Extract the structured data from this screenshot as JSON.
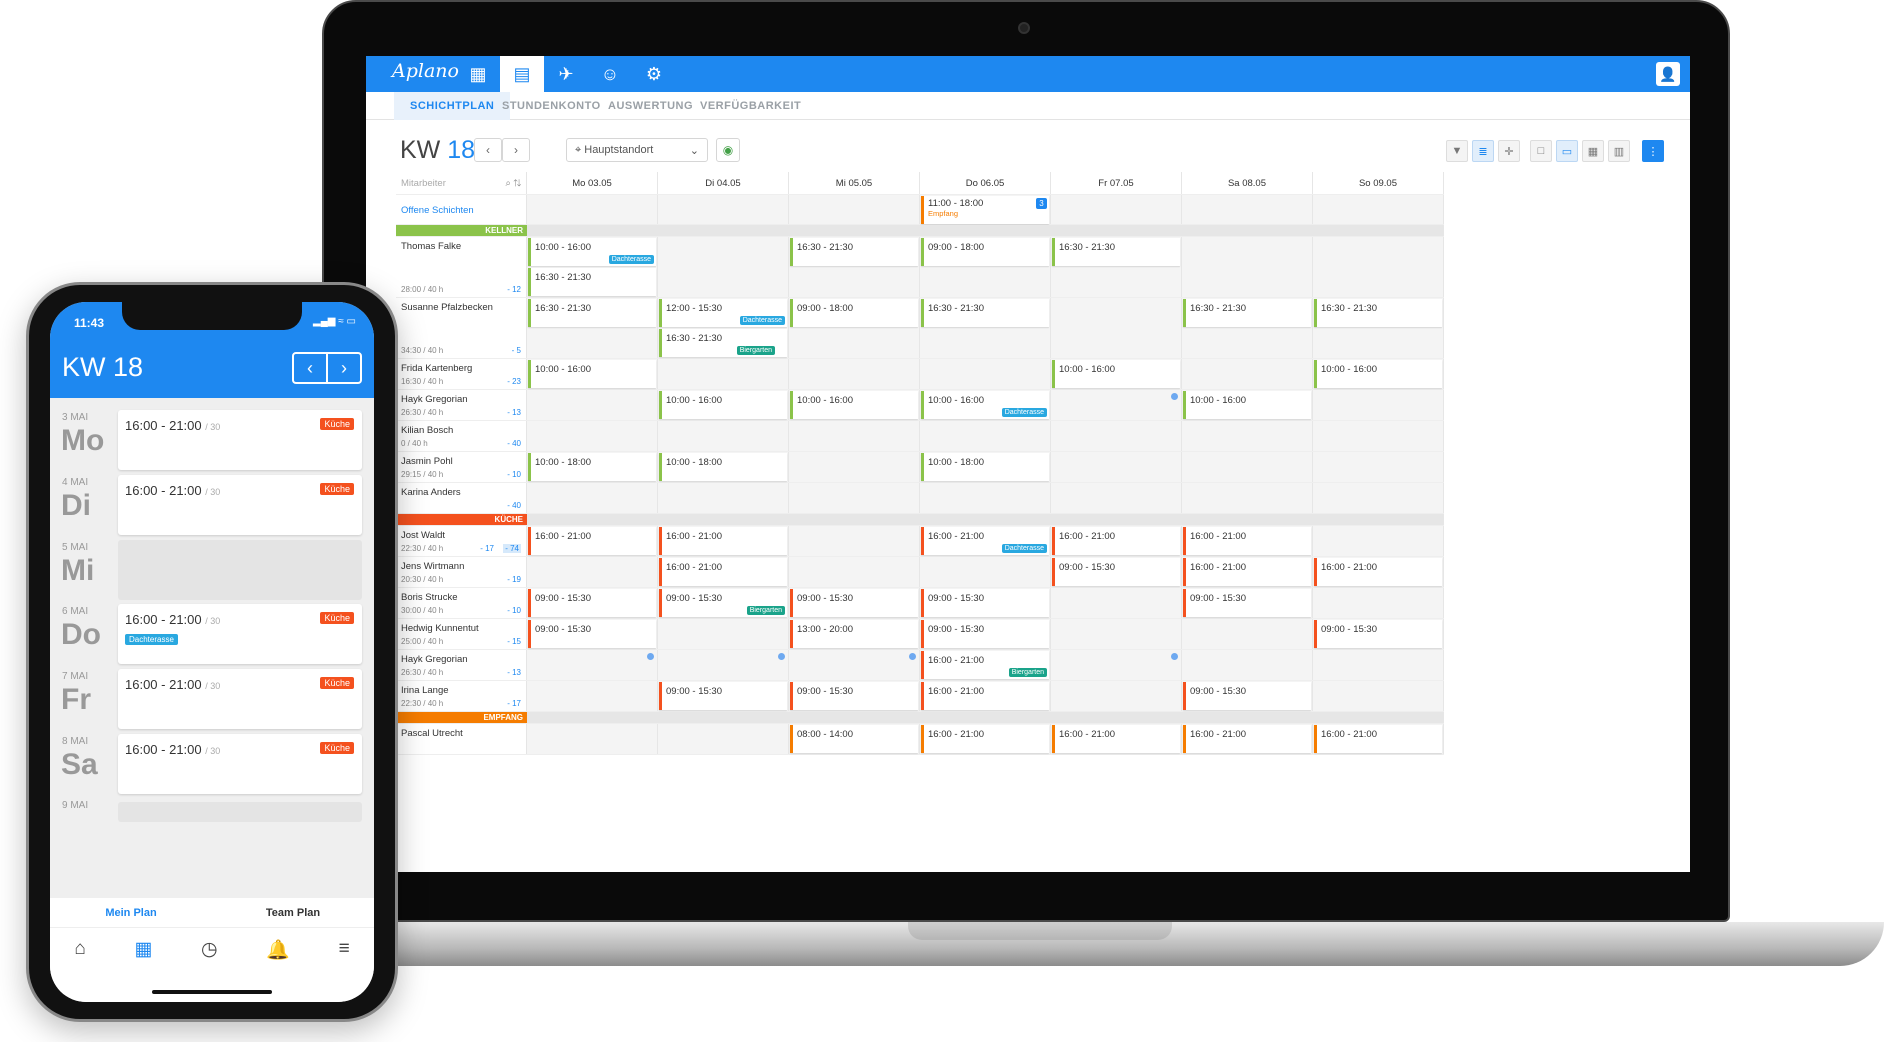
{
  "app": {
    "logo": "Aplano"
  },
  "subnav": [
    "SCHICHTPLAN",
    "STUNDENKONTO",
    "AUSWERTUNG",
    "VERFÜGBARKEIT"
  ],
  "week": {
    "prefix": "KW",
    "number": "18"
  },
  "location": "Hauptstandort",
  "search_placeholder": "Mitarbeiter",
  "days": [
    "Mo 03.05",
    "Di 04.05",
    "Mi 05.05",
    "Do 06.05",
    "Fr 07.05",
    "Sa 08.05",
    "So 09.05"
  ],
  "open_shifts": {
    "label": "Offene Schichten",
    "time": "11:00 - 18:00",
    "sub": "Empfang",
    "count": "3"
  },
  "groups": {
    "kellner": "KELLNER",
    "kueche": "KÜCHE",
    "empfang": "EMPFANG"
  },
  "employees": [
    {
      "name": "Thomas Falke",
      "hours": "28:00 / 40 h",
      "balance": "- 12"
    },
    {
      "name": "Susanne Pfalzbecken",
      "hours": "34:30 / 40 h",
      "balance": "- 5"
    },
    {
      "name": "Frida Kartenberg",
      "hours": "16:30 / 40 h",
      "balance": "- 23"
    },
    {
      "name": "Hayk Gregorian",
      "hours": "26:30 / 40 h",
      "balance": "- 13"
    },
    {
      "name": "Kilian Bosch",
      "hours": "0 / 40 h",
      "balance": "- 40"
    },
    {
      "name": "Jasmin Pohl",
      "hours": "29:15 / 40 h",
      "balance": "- 10"
    },
    {
      "name": "Karina Anders",
      "hours": "",
      "balance": "- 40"
    },
    {
      "name": "Jost Waldt",
      "hours": "22:30 / 40 h",
      "balance": "- 17",
      "balance2": "- 74"
    },
    {
      "name": "Jens Wirtmann",
      "hours": "20:30 / 40 h",
      "balance": "- 19"
    },
    {
      "name": "Boris Strucke",
      "hours": "30:00 / 40 h",
      "balance": "- 10"
    },
    {
      "name": "Hedwig Kunnentut",
      "hours": "25:00 / 40 h",
      "balance": "- 15"
    },
    {
      "name": "Hayk Gregorian",
      "hours": "26:30 / 40 h",
      "balance": "- 13"
    },
    {
      "name": "Irina Lange",
      "hours": "22:30 / 40 h",
      "balance": "- 17"
    },
    {
      "name": "Pascal Utrecht",
      "hours": "",
      "balance": ""
    }
  ],
  "shifts": {
    "t1000_1600": "10:00 - 16:00",
    "t1630_2130": "16:30 - 21:30",
    "t0900_1800": "09:00 - 18:00",
    "t1200_1530": "12:00 - 15:30",
    "t1000_1800": "10:00 - 18:00",
    "t1600_2100": "16:00 - 21:00",
    "t0900_1530": "09:00 - 15:30",
    "t1300_2000": "13:00 - 20:00",
    "t0800_1400": "08:00 - 14:00"
  },
  "tags": {
    "dachterasse": "Dachterasse",
    "biergarten": "Biergarten"
  },
  "phone": {
    "time": "11:43",
    "status": "▂▄▆ ≈ ▭",
    "kw": "KW 18",
    "days": [
      {
        "date": "3 MAI",
        "name": "Mo",
        "time": "16:00 - 21:00",
        "of": "/ 30",
        "label": "Küche"
      },
      {
        "date": "4 MAI",
        "name": "Di",
        "time": "16:00 - 21:00",
        "of": "/ 30",
        "label": "Küche"
      },
      {
        "date": "5 MAI",
        "name": "Mi"
      },
      {
        "date": "6 MAI",
        "name": "Do",
        "time": "16:00 - 21:00",
        "of": "/ 30",
        "label": "Küche",
        "tag": "Dachterasse"
      },
      {
        "date": "7 MAI",
        "name": "Fr",
        "time": "16:00 - 21:00",
        "of": "/ 30",
        "label": "Küche"
      },
      {
        "date": "8 MAI",
        "name": "Sa",
        "time": "16:00 - 21:00",
        "of": "/ 30",
        "label": "Küche"
      },
      {
        "date": "9 MAI",
        "name": ""
      }
    ],
    "tabs": [
      "Mein Plan",
      "Team Plan"
    ]
  },
  "colors": {
    "brand": "#1e88f0",
    "kellner": "#8bc34a",
    "kueche": "#f4511e",
    "empfang": "#f57c00"
  }
}
